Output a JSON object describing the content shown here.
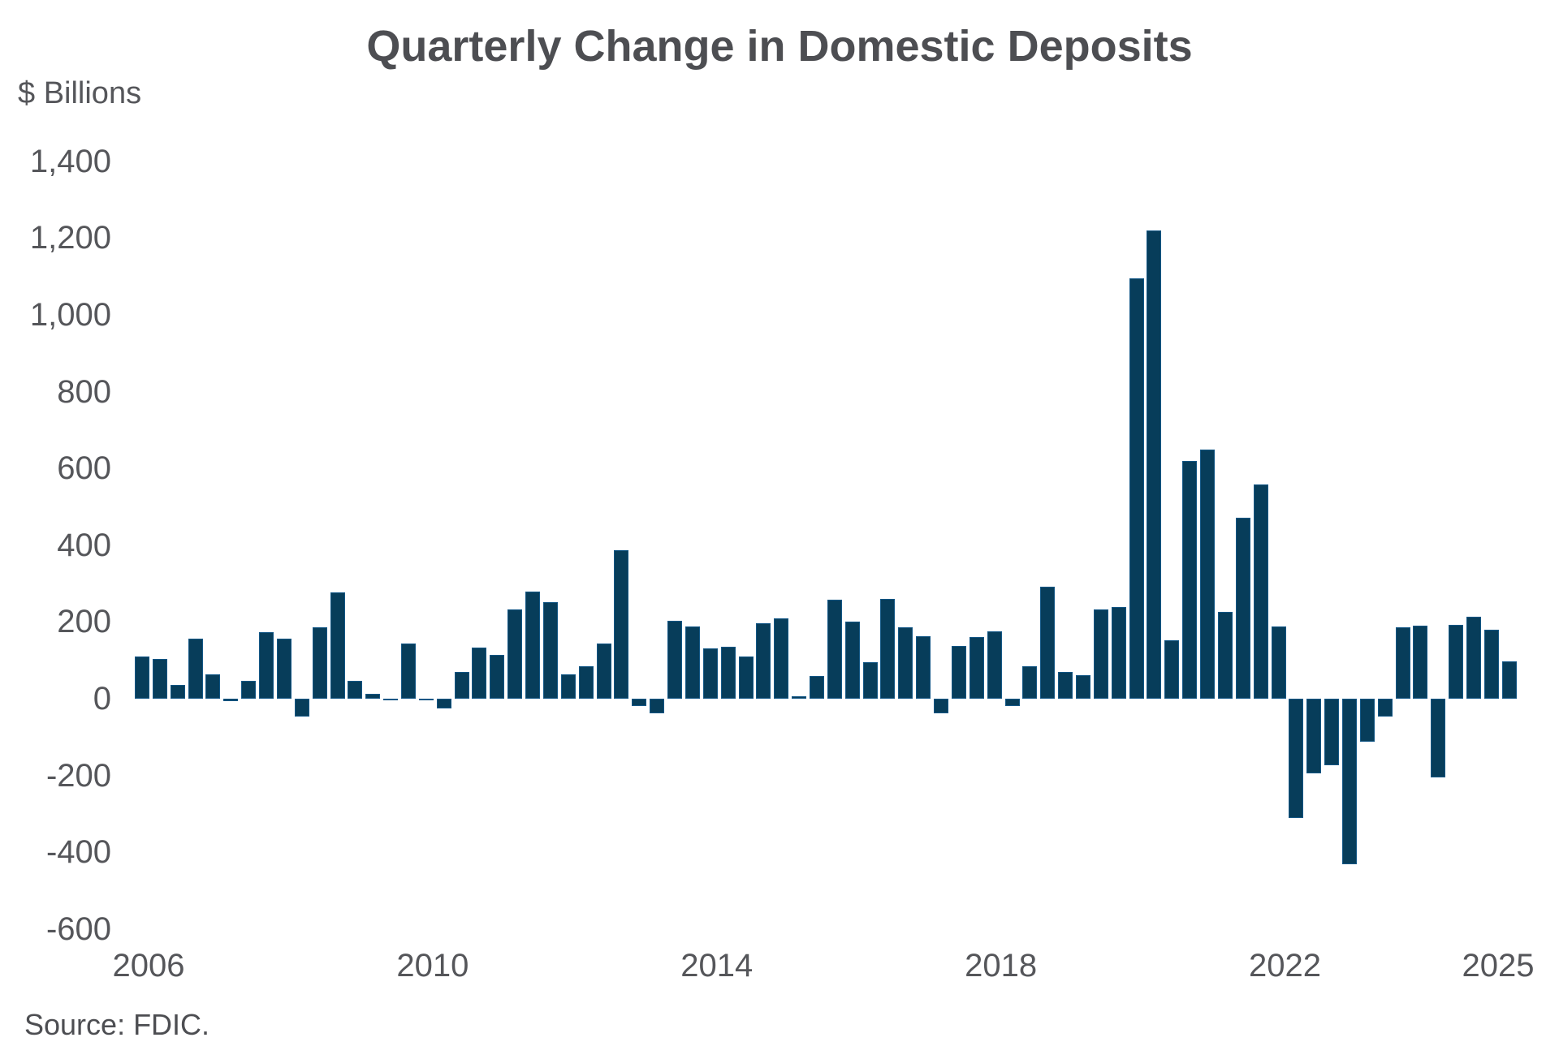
{
  "title": "Quarterly Change in Domestic Deposits",
  "y_axis_label": "$ Billions",
  "source": "Source: FDIC.",
  "colors": {
    "bar_fill": "#073d5a",
    "bar_edge": "#2478bc",
    "text": "#55565a",
    "title_text": "#4d4e52",
    "background": "#ffffff"
  },
  "chart_data": {
    "type": "bar",
    "title": "Quarterly Change in Domestic Deposits",
    "xlabel": "",
    "ylabel": "$ Billions",
    "ylim": [
      -600,
      1400
    ],
    "grid": false,
    "legend": "none",
    "y_ticks": [
      1400,
      1200,
      1000,
      800,
      600,
      400,
      200,
      0,
      -200,
      -400,
      -600
    ],
    "x_tick_years": [
      {
        "label": "2006",
        "quarter_index": 0
      },
      {
        "label": "2010",
        "quarter_index": 16
      },
      {
        "label": "2014",
        "quarter_index": 32
      },
      {
        "label": "2018",
        "quarter_index": 48
      },
      {
        "label": "2022",
        "quarter_index": 64
      },
      {
        "label": "2025",
        "quarter_index": 76
      }
    ],
    "series_name": "Quarterly change in domestic deposits ($ billions)",
    "points": [
      {
        "quarter": "2006 Q1",
        "value": 110
      },
      {
        "quarter": "2006 Q2",
        "value": 104
      },
      {
        "quarter": "2006 Q3",
        "value": 36
      },
      {
        "quarter": "2006 Q4",
        "value": 156
      },
      {
        "quarter": "2007 Q1",
        "value": 64
      },
      {
        "quarter": "2007 Q2",
        "value": -6
      },
      {
        "quarter": "2007 Q3",
        "value": 46
      },
      {
        "quarter": "2007 Q4",
        "value": 173
      },
      {
        "quarter": "2008 Q1",
        "value": 157
      },
      {
        "quarter": "2008 Q2",
        "value": -46
      },
      {
        "quarter": "2008 Q3",
        "value": 185
      },
      {
        "quarter": "2008 Q4",
        "value": 276
      },
      {
        "quarter": "2009 Q1",
        "value": 46
      },
      {
        "quarter": "2009 Q2",
        "value": 13
      },
      {
        "quarter": "2009 Q3",
        "value": -4
      },
      {
        "quarter": "2009 Q4",
        "value": 143
      },
      {
        "quarter": "2010 Q1",
        "value": -5
      },
      {
        "quarter": "2010 Q2",
        "value": -26
      },
      {
        "quarter": "2010 Q3",
        "value": 69
      },
      {
        "quarter": "2010 Q4",
        "value": 133
      },
      {
        "quarter": "2011 Q1",
        "value": 115
      },
      {
        "quarter": "2011 Q2",
        "value": 232
      },
      {
        "quarter": "2011 Q3",
        "value": 279
      },
      {
        "quarter": "2011 Q4",
        "value": 252
      },
      {
        "quarter": "2012 Q1",
        "value": 64
      },
      {
        "quarter": "2012 Q2",
        "value": 85
      },
      {
        "quarter": "2012 Q3",
        "value": 144
      },
      {
        "quarter": "2012 Q4",
        "value": 386
      },
      {
        "quarter": "2013 Q1",
        "value": -20
      },
      {
        "quarter": "2013 Q2",
        "value": -39
      },
      {
        "quarter": "2013 Q3",
        "value": 204
      },
      {
        "quarter": "2013 Q4",
        "value": 189
      },
      {
        "quarter": "2014 Q1",
        "value": 131
      },
      {
        "quarter": "2014 Q2",
        "value": 136
      },
      {
        "quarter": "2014 Q3",
        "value": 110
      },
      {
        "quarter": "2014 Q4",
        "value": 196
      },
      {
        "quarter": "2015 Q1",
        "value": 209
      },
      {
        "quarter": "2015 Q2",
        "value": 6
      },
      {
        "quarter": "2015 Q3",
        "value": 60
      },
      {
        "quarter": "2015 Q4",
        "value": 257
      },
      {
        "quarter": "2016 Q1",
        "value": 201
      },
      {
        "quarter": "2016 Q2",
        "value": 95
      },
      {
        "quarter": "2016 Q3",
        "value": 259
      },
      {
        "quarter": "2016 Q4",
        "value": 185
      },
      {
        "quarter": "2017 Q1",
        "value": 163
      },
      {
        "quarter": "2017 Q2",
        "value": -39
      },
      {
        "quarter": "2017 Q3",
        "value": 138
      },
      {
        "quarter": "2017 Q4",
        "value": 161
      },
      {
        "quarter": "2018 Q1",
        "value": 176
      },
      {
        "quarter": "2018 Q2",
        "value": -20
      },
      {
        "quarter": "2018 Q3",
        "value": 85
      },
      {
        "quarter": "2018 Q4",
        "value": 291
      },
      {
        "quarter": "2019 Q1",
        "value": 69
      },
      {
        "quarter": "2019 Q2",
        "value": 61
      },
      {
        "quarter": "2019 Q3",
        "value": 233
      },
      {
        "quarter": "2019 Q4",
        "value": 239
      },
      {
        "quarter": "2020 Q1",
        "value": 1095
      },
      {
        "quarter": "2020 Q2",
        "value": 1220
      },
      {
        "quarter": "2020 Q3",
        "value": 152
      },
      {
        "quarter": "2020 Q4",
        "value": 619
      },
      {
        "quarter": "2021 Q1",
        "value": 648
      },
      {
        "quarter": "2021 Q2",
        "value": 226
      },
      {
        "quarter": "2021 Q3",
        "value": 471
      },
      {
        "quarter": "2021 Q4",
        "value": 558
      },
      {
        "quarter": "2022 Q1",
        "value": 189
      },
      {
        "quarter": "2022 Q2",
        "value": -311
      },
      {
        "quarter": "2022 Q3",
        "value": -194
      },
      {
        "quarter": "2022 Q4",
        "value": -174
      },
      {
        "quarter": "2023 Q1",
        "value": -431
      },
      {
        "quarter": "2023 Q2",
        "value": -113
      },
      {
        "quarter": "2023 Q3",
        "value": -46
      },
      {
        "quarter": "2023 Q4",
        "value": 185
      },
      {
        "quarter": "2024 Q1",
        "value": 190
      },
      {
        "quarter": "2024 Q2",
        "value": -206
      },
      {
        "quarter": "2024 Q3",
        "value": 193
      },
      {
        "quarter": "2024 Q4",
        "value": 214
      },
      {
        "quarter": "2025 Q1",
        "value": 179
      },
      {
        "quarter": "2025 Q2",
        "value": 97
      }
    ]
  }
}
